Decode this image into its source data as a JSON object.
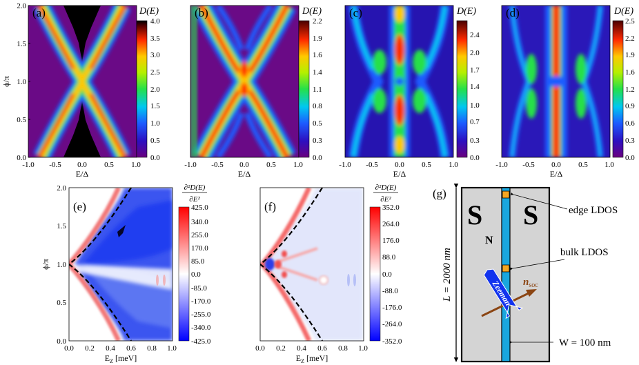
{
  "chart_data": [
    {
      "id": "a",
      "type": "heatmap",
      "panel_label": "(a)",
      "xlabel": "E/Δ",
      "ylabel": "ϕ/π",
      "xlim": [
        -1.0,
        1.0
      ],
      "ylim": [
        0.0,
        2.0
      ],
      "xticks": [
        "-1.0",
        "-0.5",
        "0.0",
        "0.5",
        "1.0"
      ],
      "yticks": [
        "0.0",
        "0.5",
        "1.0",
        "1.5",
        "2.0"
      ],
      "colorbar_title": "D(E)",
      "colorbar_ticks": [
        "0.0",
        "0.5",
        "1.0",
        "1.5",
        "2.0",
        "2.5",
        "3.0",
        "3.5",
        "4.0"
      ],
      "colorbar_range": [
        0.0,
        4.0
      ]
    },
    {
      "id": "b",
      "type": "heatmap",
      "panel_label": "(b)",
      "xlabel": "E/Δ",
      "xlim": [
        -1.0,
        1.0
      ],
      "ylim": [
        0.0,
        2.0
      ],
      "xticks": [
        "-1.0",
        "-0.5",
        "0.0",
        "0.5",
        "1.0"
      ],
      "colorbar_title": "D(E)",
      "colorbar_ticks": [
        "0.0",
        "0.3",
        "0.5",
        "0.8",
        "1.1",
        "1.4",
        "1.6",
        "1.9",
        "2.2"
      ],
      "colorbar_range": [
        0.0,
        2.2
      ]
    },
    {
      "id": "c",
      "type": "heatmap",
      "panel_label": "(c)",
      "xlabel": "E/Δ",
      "xlim": [
        -1.0,
        1.0
      ],
      "ylim": [
        0.0,
        2.0
      ],
      "xticks": [
        "-1.0",
        "-0.5",
        "0.0",
        "0.5",
        "1.0"
      ],
      "colorbar_title": "D(E)",
      "colorbar_ticks": [
        "0.0",
        "0.3",
        "0.7",
        "1.0",
        "1.4",
        "1.7",
        "2.0",
        "2.4"
      ],
      "colorbar_range": [
        0.0,
        2.7
      ]
    },
    {
      "id": "d",
      "type": "heatmap",
      "panel_label": "(d)",
      "xlabel": "E/Δ",
      "xlim": [
        -1.0,
        1.0
      ],
      "ylim": [
        0.0,
        2.0
      ],
      "xticks": [
        "-1.0",
        "-0.5",
        "0.0",
        "0.5",
        "1.0"
      ],
      "colorbar_title": "D(E)",
      "colorbar_ticks": [
        "0.0",
        "0.3",
        "0.6",
        "0.9",
        "1.2",
        "1.6",
        "1.9",
        "2.2",
        "2.5"
      ],
      "colorbar_range": [
        0.0,
        2.5
      ]
    },
    {
      "id": "e",
      "type": "heatmap",
      "panel_label": "(e)",
      "xlabel": "E",
      "xlabel_sub": "Z",
      "xlabel_unit": " [meV]",
      "ylabel": "ϕ/π",
      "xlim": [
        0.0,
        1.0
      ],
      "ylim": [
        0.0,
        2.0
      ],
      "xticks": [
        "0.0",
        "0.2",
        "0.4",
        "0.6",
        "0.8",
        "1.0"
      ],
      "yticks": [
        "0.0",
        "0.5",
        "1.0",
        "1.5",
        "2.0"
      ],
      "colorbar_title_num": "∂²D(E)",
      "colorbar_title_den": "∂E²",
      "colorbar_ticks": [
        "425.0",
        "340.0",
        "255.0",
        "170.0",
        "85.0",
        "0.0",
        "-85.0",
        "-170.0",
        "-255.0",
        "-340.0",
        "-425.0"
      ],
      "colorbar_range": [
        -425.0,
        425.0
      ],
      "dashed_boundary": {
        "x_at_phi_pi": 0.0,
        "x_at_phi_0": 0.6
      }
    },
    {
      "id": "f",
      "type": "heatmap",
      "panel_label": "(f)",
      "xlabel": "E",
      "xlabel_sub": "Z",
      "xlabel_unit": " [meV]",
      "xlim": [
        0.0,
        1.0
      ],
      "ylim": [
        0.0,
        2.0
      ],
      "xticks": [
        "0.0",
        "0.2",
        "0.4",
        "0.6",
        "0.8",
        "1.0"
      ],
      "colorbar_title_num": "∂²D(E)",
      "colorbar_title_den": "∂E²",
      "colorbar_ticks": [
        "352.0",
        "264.0",
        "176.0",
        "88.0",
        "0.0",
        "-88.0",
        "-176.0",
        "-264.0",
        "-352.0"
      ],
      "colorbar_range": [
        -352.0,
        352.0
      ],
      "dashed_boundary": {
        "x_at_phi_pi": 0.0,
        "x_at_phi_0": 0.6
      }
    }
  ],
  "schematic": {
    "panel_label": "(g)",
    "left_label": "S",
    "right_label": "S",
    "n_label": "N",
    "edge_label": "edge LDOS",
    "bulk_label": "bulk LDOS",
    "zeeman_label": "Zeeman",
    "nsoc_main": "n",
    "nsoc_sub": "soc",
    "length_label": "L = 2000 nm",
    "width_label": "W = 100 nm",
    "colors": {
      "superconductor": "#d4d4d4",
      "normal": "#1aa7de",
      "marker": "#f5a623",
      "zeeman": "#1233ee",
      "nsoc": "#8b4513"
    }
  }
}
